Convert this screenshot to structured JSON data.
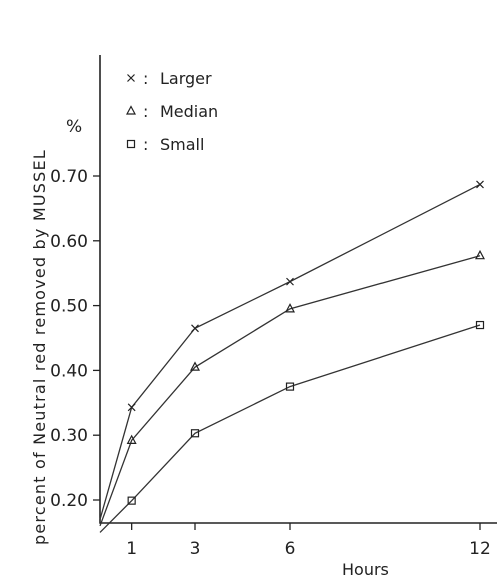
{
  "chart_data": {
    "type": "line",
    "ylabel": "percent of Neutral red removed by MUSSEL",
    "yunit": "%",
    "xlabel": "Hours",
    "x_ticks": [
      1,
      3,
      6,
      12
    ],
    "y_ticks": [
      0.2,
      0.3,
      0.4,
      0.5,
      0.6,
      0.7
    ],
    "y_tick_labels": [
      "0.20",
      "0.30",
      "0.40",
      "0.50",
      "0.60",
      "0.70"
    ],
    "xlim": [
      0,
      12
    ],
    "ylim": [
      0.15,
      0.85
    ],
    "grid": false,
    "legend_position": "top-left",
    "series": [
      {
        "name": "Larger",
        "marker": "x",
        "x": [
          0,
          1,
          3,
          6,
          12
        ],
        "y": [
          0.17,
          0.343,
          0.465,
          0.537,
          0.687
        ]
      },
      {
        "name": "Median",
        "marker": "triangle",
        "x": [
          0,
          1,
          3,
          6,
          12
        ],
        "y": [
          0.16,
          0.292,
          0.405,
          0.495,
          0.577
        ]
      },
      {
        "name": "Small",
        "marker": "square",
        "x": [
          0,
          1,
          3,
          6,
          12
        ],
        "y": [
          0.15,
          0.199,
          0.303,
          0.375,
          0.47
        ]
      }
    ]
  }
}
